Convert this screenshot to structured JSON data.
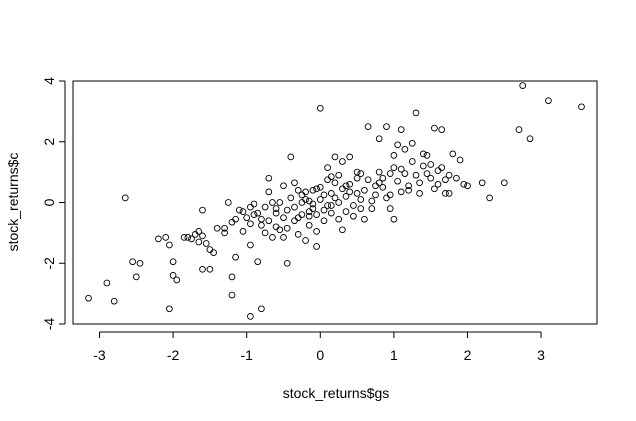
{
  "chart_data": {
    "type": "scatter",
    "title": "",
    "xlabel": "stock_returns$gs",
    "ylabel": "stock_returns$c",
    "xlim": [
      -3.36,
      3.76
    ],
    "ylim": [
      -4.0,
      4.0
    ],
    "xticks": [
      -3,
      -2,
      -1,
      0,
      1,
      2,
      3
    ],
    "yticks": [
      -4,
      -2,
      0,
      2,
      4
    ],
    "xtick_labels": [
      "-3",
      "-2",
      "-1",
      "0",
      "1",
      "2",
      "3"
    ],
    "ytick_labels": [
      "-4",
      "-2",
      "0",
      "2",
      "4"
    ],
    "grid": false,
    "legend": "none",
    "marker": "open-circle",
    "colors": {
      "point": "#000000",
      "background": "#ffffff",
      "axis": "#000000"
    },
    "points": [
      [
        -3.15,
        -3.15
      ],
      [
        -2.9,
        -2.65
      ],
      [
        -2.8,
        -3.25
      ],
      [
        -2.65,
        0.15
      ],
      [
        -2.55,
        -1.95
      ],
      [
        -2.5,
        -2.45
      ],
      [
        -2.45,
        -2.0
      ],
      [
        -2.2,
        -1.2
      ],
      [
        -2.1,
        -1.15
      ],
      [
        -2.05,
        -3.5
      ],
      [
        -2.05,
        -1.4
      ],
      [
        -2.0,
        -1.95
      ],
      [
        -2.0,
        -2.4
      ],
      [
        -1.95,
        -2.55
      ],
      [
        -1.85,
        -1.15
      ],
      [
        -1.8,
        -1.15
      ],
      [
        -1.75,
        -1.2
      ],
      [
        -1.7,
        -1.05
      ],
      [
        -1.65,
        -1.3
      ],
      [
        -1.65,
        -0.95
      ],
      [
        -1.6,
        -2.2
      ],
      [
        -1.6,
        -1.1
      ],
      [
        -1.6,
        -0.25
      ],
      [
        -1.55,
        -1.35
      ],
      [
        -1.5,
        -1.55
      ],
      [
        -1.5,
        -2.2
      ],
      [
        -1.45,
        -1.65
      ],
      [
        -1.3,
        -0.85
      ],
      [
        -1.25,
        0.0
      ],
      [
        -1.2,
        -2.45
      ],
      [
        -1.2,
        -3.05
      ],
      [
        -1.2,
        -0.65
      ],
      [
        -1.15,
        -1.8
      ],
      [
        -1.15,
        -0.55
      ],
      [
        -1.1,
        -0.25
      ],
      [
        -1.05,
        -0.95
      ],
      [
        -1.0,
        -0.5
      ],
      [
        -0.95,
        -3.75
      ],
      [
        -0.95,
        -1.4
      ],
      [
        -0.95,
        -0.15
      ],
      [
        -0.9,
        -0.4
      ],
      [
        -0.9,
        -0.05
      ],
      [
        -0.85,
        -0.35
      ],
      [
        -0.85,
        -1.95
      ],
      [
        -0.8,
        -3.5
      ],
      [
        -0.8,
        -0.75
      ],
      [
        -0.75,
        -1.0
      ],
      [
        -0.7,
        -0.6
      ],
      [
        -0.7,
        0.35
      ],
      [
        -0.7,
        0.8
      ],
      [
        -0.65,
        -1.15
      ],
      [
        -0.6,
        -0.8
      ],
      [
        -0.6,
        -0.35
      ],
      [
        -0.55,
        0.0
      ],
      [
        -0.5,
        -1.15
      ],
      [
        -0.5,
        -0.5
      ],
      [
        -0.5,
        0.55
      ],
      [
        -0.45,
        -2.0
      ],
      [
        -0.45,
        -0.85
      ],
      [
        -0.45,
        -0.25
      ],
      [
        -0.4,
        1.5
      ],
      [
        -0.4,
        0.15
      ],
      [
        -0.35,
        -0.6
      ],
      [
        -0.35,
        0.65
      ],
      [
        -0.3,
        -1.05
      ],
      [
        -0.3,
        0.4
      ],
      [
        -0.25,
        -0.4
      ],
      [
        -0.25,
        0.0
      ],
      [
        -0.2,
        -1.25
      ],
      [
        -0.2,
        0.35
      ],
      [
        -0.15,
        -0.75
      ],
      [
        -0.15,
        -0.3
      ],
      [
        -0.15,
        0.05
      ],
      [
        -0.1,
        -0.2
      ],
      [
        -0.1,
        0.4
      ],
      [
        -0.05,
        -1.45
      ],
      [
        -0.05,
        -0.95
      ],
      [
        -0.05,
        -0.4
      ],
      [
        0.0,
        3.1
      ],
      [
        0.0,
        0.5
      ],
      [
        0.0,
        0.1
      ],
      [
        0.05,
        -0.6
      ],
      [
        0.05,
        0.25
      ],
      [
        0.1,
        -0.1
      ],
      [
        0.1,
        0.75
      ],
      [
        0.1,
        1.15
      ],
      [
        0.15,
        0.3
      ],
      [
        0.15,
        -0.35
      ],
      [
        0.2,
        1.5
      ],
      [
        0.2,
        0.65
      ],
      [
        0.25,
        -0.55
      ],
      [
        0.25,
        0.0
      ],
      [
        0.3,
        1.35
      ],
      [
        0.3,
        -0.9
      ],
      [
        0.35,
        0.2
      ],
      [
        0.35,
        -0.3
      ],
      [
        0.4,
        0.6
      ],
      [
        0.4,
        1.5
      ],
      [
        0.45,
        -0.1
      ],
      [
        0.5,
        0.8
      ],
      [
        0.5,
        0.3
      ],
      [
        0.55,
        -0.2
      ],
      [
        0.55,
        0.95
      ],
      [
        0.6,
        0.4
      ],
      [
        0.65,
        2.5
      ],
      [
        0.65,
        0.75
      ],
      [
        0.7,
        0.05
      ],
      [
        0.75,
        0.55
      ],
      [
        0.8,
        1.0
      ],
      [
        0.8,
        2.1
      ],
      [
        0.85,
        0.5
      ],
      [
        0.9,
        0.15
      ],
      [
        0.9,
        2.5
      ],
      [
        0.95,
        -0.2
      ],
      [
        0.95,
        0.95
      ],
      [
        1.0,
        1.15
      ],
      [
        1.0,
        -0.55
      ],
      [
        1.05,
        1.9
      ],
      [
        1.1,
        0.35
      ],
      [
        1.1,
        2.4
      ],
      [
        1.15,
        0.95
      ],
      [
        1.2,
        0.4
      ],
      [
        1.25,
        1.35
      ],
      [
        1.3,
        2.95
      ],
      [
        1.3,
        0.9
      ],
      [
        1.35,
        0.3
      ],
      [
        1.4,
        1.2
      ],
      [
        1.45,
        1.55
      ],
      [
        1.5,
        0.8
      ],
      [
        1.55,
        2.45
      ],
      [
        1.55,
        0.45
      ],
      [
        1.6,
        1.05
      ],
      [
        1.65,
        2.4
      ],
      [
        1.7,
        0.3
      ],
      [
        1.75,
        0.9
      ],
      [
        1.8,
        1.6
      ],
      [
        1.85,
        0.8
      ],
      [
        1.95,
        0.6
      ],
      [
        2.2,
        0.65
      ],
      [
        2.3,
        0.15
      ],
      [
        2.5,
        0.65
      ],
      [
        2.7,
        2.4
      ],
      [
        2.75,
        3.85
      ],
      [
        2.85,
        2.1
      ],
      [
        3.1,
        3.35
      ],
      [
        3.55,
        3.15
      ],
      [
        -1.4,
        -0.85
      ],
      [
        -0.05,
        0.45
      ],
      [
        0.6,
        -0.55
      ],
      [
        1.25,
        1.95
      ],
      [
        -0.55,
        -0.9
      ],
      [
        0.15,
        0.85
      ],
      [
        0.95,
        0.25
      ],
      [
        1.45,
        0.95
      ],
      [
        -0.25,
        0.25
      ],
      [
        0.45,
        -0.45
      ],
      [
        1.15,
        1.75
      ],
      [
        1.9,
        1.4
      ],
      [
        -0.65,
        0.0
      ],
      [
        0.25,
        0.9
      ],
      [
        0.75,
        0.25
      ],
      [
        1.05,
        0.7
      ],
      [
        1.6,
        0.6
      ],
      [
        -0.35,
        -0.15
      ],
      [
        0.35,
        0.55
      ],
      [
        1.35,
        0.65
      ],
      [
        -1.05,
        -0.3
      ],
      [
        0.05,
        -0.25
      ],
      [
        0.55,
        0.1
      ],
      [
        0.85,
        0.8
      ],
      [
        1.5,
        1.25
      ],
      [
        -0.15,
        -0.45
      ],
      [
        0.2,
        0.15
      ],
      [
        1.2,
        0.55
      ],
      [
        1.75,
        0.3
      ],
      [
        -0.75,
        -0.15
      ],
      [
        -0.1,
        -0.05
      ],
      [
        0.4,
        0.35
      ],
      [
        1.65,
        1.15
      ],
      [
        0.7,
        -0.2
      ],
      [
        -1.3,
        -1.0
      ],
      [
        -0.95,
        -0.7
      ],
      [
        -0.6,
        -0.2
      ],
      [
        0.15,
        -0.1
      ],
      [
        0.5,
        1.0
      ],
      [
        1.0,
        1.55
      ],
      [
        1.4,
        1.6
      ],
      [
        1.7,
        0.75
      ],
      [
        2.0,
        0.55
      ],
      [
        -0.2,
        0.1
      ],
      [
        0.3,
        0.45
      ],
      [
        0.8,
        0.65
      ],
      [
        1.1,
        1.1
      ],
      [
        -0.8,
        -0.55
      ],
      [
        -0.3,
        -0.5
      ]
    ]
  }
}
